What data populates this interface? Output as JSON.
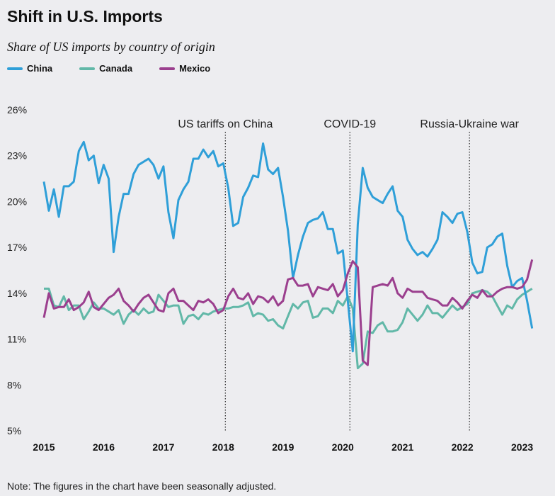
{
  "title": "Shift in U.S. Imports",
  "subtitle": "Share of US imports by country of origin",
  "note": "Note: The figures in the chart have been seasonally adjusted.",
  "chart_data": {
    "type": "line",
    "title": "Shift in U.S. Imports",
    "subtitle": "Share of US imports by country of origin",
    "xlabel": "",
    "ylabel": "",
    "x_start": "2015-01",
    "x_frequency": "monthly",
    "x_end": "2023-03",
    "xticks": [
      "2015",
      "2016",
      "2017",
      "2018",
      "2019",
      "2020",
      "2021",
      "2022",
      "2023"
    ],
    "yticks": [
      "5%",
      "8%",
      "11%",
      "14%",
      "17%",
      "20%",
      "23%",
      "26%"
    ],
    "ylim": [
      5,
      26
    ],
    "grid": false,
    "legend": "top-left",
    "annotations": [
      {
        "label": "US tariffs on China",
        "date": "2018-01"
      },
      {
        "label": "COVID-19",
        "date": "2020-02"
      },
      {
        "label": "Russia-Ukraine war",
        "date": "2022-02"
      }
    ],
    "series": [
      {
        "name": "China",
        "color": "#2f9fd8",
        "values": [
          21.3,
          19.4,
          20.8,
          19.0,
          21.0,
          21.0,
          21.3,
          23.3,
          23.9,
          22.7,
          23.0,
          21.2,
          22.4,
          21.5,
          16.7,
          19.0,
          20.5,
          20.5,
          21.8,
          22.4,
          22.6,
          22.8,
          22.4,
          21.5,
          22.3,
          19.3,
          17.6,
          20.1,
          20.8,
          21.3,
          22.8,
          22.8,
          23.4,
          22.9,
          23.3,
          22.3,
          22.5,
          20.9,
          18.4,
          18.6,
          20.3,
          20.9,
          21.7,
          21.6,
          23.8,
          22.1,
          21.8,
          22.2,
          20.3,
          18.1,
          15.0,
          16.5,
          17.7,
          18.6,
          18.8,
          18.9,
          19.3,
          18.2,
          18.2,
          16.6,
          16.8,
          13.5,
          10.2,
          18.5,
          22.2,
          20.9,
          20.3,
          20.1,
          19.9,
          20.5,
          21.0,
          19.4,
          19.0,
          17.5,
          16.9,
          16.5,
          16.7,
          16.4,
          16.9,
          17.5,
          19.3,
          19.0,
          18.6,
          19.2,
          19.3,
          18.0,
          16.0,
          15.3,
          15.4,
          17.0,
          17.2,
          17.7,
          17.9,
          15.8,
          14.4,
          14.8,
          15.0,
          13.5,
          11.7
        ]
      },
      {
        "name": "Canada",
        "color": "#62b8a8",
        "values": [
          14.3,
          14.3,
          13.2,
          13.1,
          13.8,
          12.9,
          13.2,
          13.2,
          12.3,
          12.8,
          13.4,
          13.0,
          13.0,
          12.8,
          12.6,
          12.9,
          12.0,
          12.6,
          12.9,
          12.6,
          13.0,
          12.7,
          12.8,
          13.9,
          13.5,
          13.1,
          13.2,
          13.2,
          12.0,
          12.5,
          12.6,
          12.3,
          12.7,
          12.6,
          12.8,
          12.9,
          13.0,
          13.0,
          13.1,
          13.1,
          13.2,
          13.4,
          12.5,
          12.7,
          12.6,
          12.2,
          12.3,
          11.9,
          11.7,
          12.5,
          13.3,
          13.0,
          13.4,
          13.5,
          12.4,
          12.5,
          13.0,
          13.0,
          12.7,
          13.5,
          13.2,
          13.8,
          13.0,
          9.1,
          9.4,
          11.5,
          11.4,
          11.9,
          12.1,
          11.5,
          11.5,
          11.6,
          12.1,
          13.0,
          12.6,
          12.2,
          12.6,
          13.2,
          12.7,
          12.7,
          12.4,
          12.8,
          13.2,
          12.9,
          13.1,
          13.3,
          14.0,
          14.1,
          14.2,
          14.1,
          13.8,
          13.2,
          12.6,
          13.2,
          13.0,
          13.6,
          13.9,
          14.1,
          14.3
        ]
      },
      {
        "name": "Mexico",
        "color": "#9b3f8e",
        "values": [
          12.4,
          14.0,
          13.0,
          13.1,
          13.1,
          13.6,
          12.9,
          13.1,
          13.4,
          14.1,
          13.1,
          12.9,
          13.3,
          13.7,
          13.9,
          14.3,
          13.5,
          13.2,
          12.8,
          13.3,
          13.7,
          13.9,
          13.4,
          12.9,
          12.8,
          14.0,
          14.3,
          13.5,
          13.5,
          13.2,
          12.9,
          13.5,
          13.4,
          13.6,
          13.3,
          12.7,
          12.9,
          13.8,
          14.3,
          13.7,
          13.6,
          14.0,
          13.3,
          13.8,
          13.7,
          13.4,
          13.8,
          13.2,
          13.5,
          14.9,
          15.0,
          14.5,
          14.5,
          14.6,
          13.8,
          14.4,
          14.3,
          14.2,
          14.6,
          13.8,
          14.2,
          15.3,
          16.1,
          15.7,
          9.6,
          9.3,
          14.4,
          14.5,
          14.6,
          14.5,
          15.0,
          14.0,
          13.7,
          14.3,
          14.1,
          14.1,
          14.1,
          13.7,
          13.6,
          13.5,
          13.2,
          13.2,
          13.7,
          13.4,
          13.0,
          13.5,
          13.9,
          13.7,
          14.2,
          13.8,
          13.8,
          14.1,
          14.3,
          14.4,
          14.4,
          14.3,
          14.4,
          14.9,
          16.2
        ]
      }
    ]
  }
}
